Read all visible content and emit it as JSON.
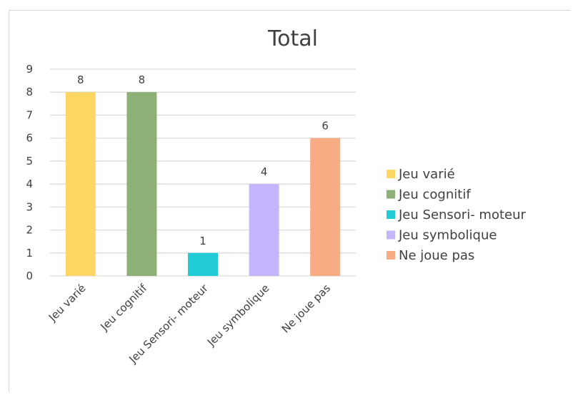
{
  "chart_data": {
    "type": "bar",
    "title": "Total",
    "categories": [
      "Jeu  varié",
      "Jeu cognitif",
      "Jeu Sensori- moteur",
      "Jeu symbolique",
      "Ne joue pas"
    ],
    "values": [
      8,
      8,
      1,
      4,
      6
    ],
    "colors": [
      "#fdd663",
      "#8db077",
      "#22ccd6",
      "#c4b5fc",
      "#f7ac84"
    ],
    "ylim": [
      0,
      9
    ],
    "yticks": [
      "0",
      "1",
      "2",
      "3",
      "4",
      "5",
      "6",
      "7",
      "8",
      "9"
    ],
    "data_labels": [
      "8",
      "8",
      "1",
      "4",
      "6"
    ],
    "grid": true,
    "legend": {
      "position": "right",
      "entries": [
        "Jeu  varié",
        "Jeu cognitif",
        "Jeu Sensori- moteur",
        "Jeu symbolique",
        "Ne joue pas"
      ]
    }
  }
}
